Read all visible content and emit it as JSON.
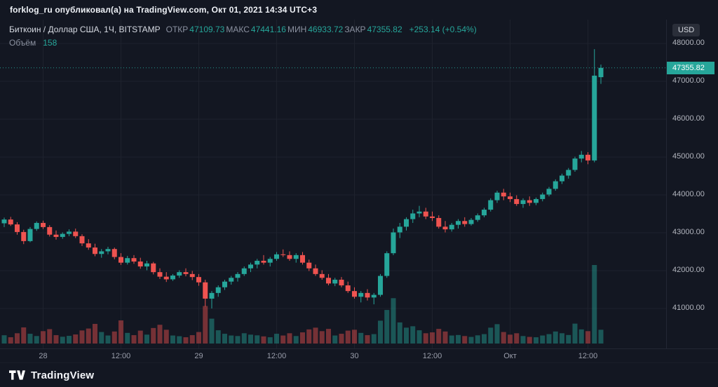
{
  "topbar": {
    "text": "forklog_ru опубликовал(а) на TradingView.com, Окт 01, 2021 14:34 UTC+3"
  },
  "legend": {
    "symbol": "Биткоин / Доллар США, 1Ч, BITSTAMP",
    "ohlc": [
      {
        "label": "ОТКР",
        "value": "47109.73"
      },
      {
        "label": "МАКС",
        "value": "47441.16"
      },
      {
        "label": "МИН",
        "value": "46933.72"
      },
      {
        "label": "ЗАКР",
        "value": "47355.82"
      }
    ],
    "change": "+253.14 (+0.54%)",
    "volume_label": "Объём",
    "volume_value": "158"
  },
  "price_scale": {
    "currency": "USD",
    "labels": [
      "48000.00",
      "47000.00",
      "46000.00",
      "45000.00",
      "44000.00",
      "43000.00",
      "42000.00",
      "41000.00"
    ],
    "last_price": "47355.82"
  },
  "footer": {
    "brand": "TradingView"
  },
  "colors": {
    "up": "#26a69a",
    "down": "#ef5350",
    "bg": "#131722",
    "grid": "#1e222d",
    "axis_text": "#b2b5be"
  },
  "chart_data": {
    "type": "candlestick+volume",
    "title": "Биткоин / Доллар США, 1Ч, BITSTAMP",
    "interval": "1Ч",
    "exchange": "BITSTAMP",
    "current_bar": {
      "open": 47109.73,
      "high": 47441.16,
      "low": 46933.72,
      "close": 47355.82,
      "change": 253.14,
      "change_pct": 0.54,
      "volume": 158
    },
    "last_price_line": 47355.82,
    "y_axis": {
      "min": 40600,
      "max": 48400,
      "ticks": [
        48000,
        47000,
        46000,
        45000,
        44000,
        43000,
        42000,
        41000
      ]
    },
    "x_ticks": [
      {
        "i": 6,
        "label": "28"
      },
      {
        "i": 18,
        "label": "12:00"
      },
      {
        "i": 30,
        "label": "29"
      },
      {
        "i": 42,
        "label": "12:00"
      },
      {
        "i": 54,
        "label": "30"
      },
      {
        "i": 66,
        "label": "12:00"
      },
      {
        "i": 78,
        "label": "Окт"
      },
      {
        "i": 90,
        "label": "12:00"
      }
    ],
    "candles": [
      [
        43250,
        43400,
        43150,
        43350
      ],
      [
        43350,
        43420,
        43180,
        43220
      ],
      [
        43220,
        43280,
        42950,
        43020
      ],
      [
        43020,
        43080,
        42700,
        42780
      ],
      [
        42780,
        43150,
        42750,
        43100
      ],
      [
        43100,
        43300,
        43050,
        43260
      ],
      [
        43260,
        43320,
        43100,
        43150
      ],
      [
        43150,
        43200,
        42900,
        42950
      ],
      [
        42950,
        43060,
        42820,
        42890
      ],
      [
        42890,
        43010,
        42840,
        42970
      ],
      [
        42970,
        43090,
        42910,
        43030
      ],
      [
        43030,
        43110,
        42860,
        42910
      ],
      [
        42910,
        42960,
        42650,
        42720
      ],
      [
        42720,
        42830,
        42550,
        42610
      ],
      [
        42610,
        42710,
        42380,
        42440
      ],
      [
        42440,
        42570,
        42340,
        42510
      ],
      [
        42510,
        42630,
        42430,
        42570
      ],
      [
        42570,
        42610,
        42300,
        42360
      ],
      [
        42360,
        42460,
        42150,
        42210
      ],
      [
        42210,
        42390,
        42160,
        42330
      ],
      [
        42330,
        42410,
        42180,
        42240
      ],
      [
        42240,
        42340,
        42050,
        42110
      ],
      [
        42110,
        42260,
        42010,
        42190
      ],
      [
        42190,
        42230,
        41900,
        41960
      ],
      [
        41960,
        42060,
        41780,
        41840
      ],
      [
        41840,
        41960,
        41700,
        41770
      ],
      [
        41770,
        41910,
        41730,
        41870
      ],
      [
        41870,
        42010,
        41810,
        41960
      ],
      [
        41960,
        42060,
        41850,
        41910
      ],
      [
        41910,
        41990,
        41750,
        41830
      ],
      [
        41830,
        41910,
        41600,
        41690
      ],
      [
        41690,
        41760,
        41050,
        41260
      ],
      [
        41260,
        41460,
        41000,
        41410
      ],
      [
        41410,
        41610,
        41310,
        41560
      ],
      [
        41560,
        41760,
        41490,
        41710
      ],
      [
        41710,
        41860,
        41630,
        41810
      ],
      [
        41810,
        41960,
        41710,
        41910
      ],
      [
        41910,
        42110,
        41860,
        42060
      ],
      [
        42060,
        42210,
        41960,
        42160
      ],
      [
        42160,
        42310,
        42060,
        42260
      ],
      [
        42260,
        42410,
        42160,
        42210
      ],
      [
        42210,
        42360,
        42110,
        42310
      ],
      [
        42310,
        42490,
        42260,
        42430
      ],
      [
        42430,
        42560,
        42360,
        42410
      ],
      [
        42410,
        42510,
        42260,
        42310
      ],
      [
        42310,
        42460,
        42210,
        42410
      ],
      [
        42410,
        42490,
        42160,
        42210
      ],
      [
        42210,
        42290,
        41990,
        42060
      ],
      [
        42060,
        42160,
        41860,
        41910
      ],
      [
        41910,
        42010,
        41760,
        41810
      ],
      [
        41810,
        41910,
        41610,
        41660
      ],
      [
        41660,
        41810,
        41590,
        41760
      ],
      [
        41760,
        41830,
        41560,
        41610
      ],
      [
        41610,
        41710,
        41410,
        41460
      ],
      [
        41460,
        41560,
        41260,
        41310
      ],
      [
        41310,
        41460,
        41160,
        41410
      ],
      [
        41410,
        41510,
        41210,
        41290
      ],
      [
        41290,
        41410,
        41110,
        41360
      ],
      [
        41360,
        41910,
        41310,
        41860
      ],
      [
        41860,
        42510,
        41810,
        42460
      ],
      [
        42460,
        43110,
        42410,
        43010
      ],
      [
        43010,
        43260,
        42860,
        43160
      ],
      [
        43160,
        43410,
        43060,
        43360
      ],
      [
        43360,
        43610,
        43260,
        43510
      ],
      [
        43510,
        43710,
        43410,
        43560
      ],
      [
        43560,
        43660,
        43360,
        43430
      ],
      [
        43430,
        43560,
        43310,
        43390
      ],
      [
        43390,
        43460,
        43110,
        43160
      ],
      [
        43160,
        43310,
        43010,
        43090
      ],
      [
        43090,
        43260,
        43030,
        43210
      ],
      [
        43210,
        43360,
        43110,
        43310
      ],
      [
        43310,
        43410,
        43160,
        43230
      ],
      [
        43230,
        43390,
        43190,
        43340
      ],
      [
        43340,
        43510,
        43290,
        43460
      ],
      [
        43460,
        43660,
        43410,
        43610
      ],
      [
        43610,
        43910,
        43560,
        43860
      ],
      [
        43860,
        44110,
        43790,
        44060
      ],
      [
        44060,
        44160,
        43860,
        43960
      ],
      [
        43960,
        44060,
        43810,
        43890
      ],
      [
        43890,
        43990,
        43710,
        43760
      ],
      [
        43760,
        43910,
        43660,
        43860
      ],
      [
        43860,
        43960,
        43710,
        43790
      ],
      [
        43790,
        43930,
        43730,
        43890
      ],
      [
        43890,
        44060,
        43830,
        44010
      ],
      [
        44010,
        44210,
        43960,
        44160
      ],
      [
        44160,
        44410,
        44110,
        44360
      ],
      [
        44360,
        44560,
        44290,
        44510
      ],
      [
        44510,
        44710,
        44430,
        44660
      ],
      [
        44660,
        45010,
        44610,
        44960
      ],
      [
        44960,
        45160,
        44860,
        45060
      ],
      [
        45060,
        45130,
        44810,
        44910
      ],
      [
        44910,
        47850,
        44860,
        47150
      ],
      [
        47109.73,
        47441.16,
        46933.72,
        47355.82
      ]
    ],
    "volumes": [
      95,
      72,
      118,
      185,
      112,
      86,
      142,
      165,
      96,
      78,
      88,
      104,
      150,
      172,
      225,
      132,
      92,
      138,
      265,
      122,
      96,
      148,
      102,
      178,
      215,
      158,
      92,
      84,
      72,
      96,
      132,
      430,
      285,
      152,
      112,
      92,
      86,
      118,
      102,
      94,
      82,
      72,
      112,
      92,
      118,
      86,
      128,
      162,
      182,
      142,
      168,
      92,
      112,
      148,
      158,
      122,
      96,
      108,
      262,
      385,
      520,
      242,
      182,
      198,
      152,
      118,
      128,
      168,
      138,
      92,
      98,
      86,
      76,
      94,
      108,
      182,
      222,
      132,
      102,
      118,
      86,
      76,
      72,
      92,
      108,
      138,
      118,
      98,
      228,
      162,
      142,
      900,
      158
    ]
  }
}
